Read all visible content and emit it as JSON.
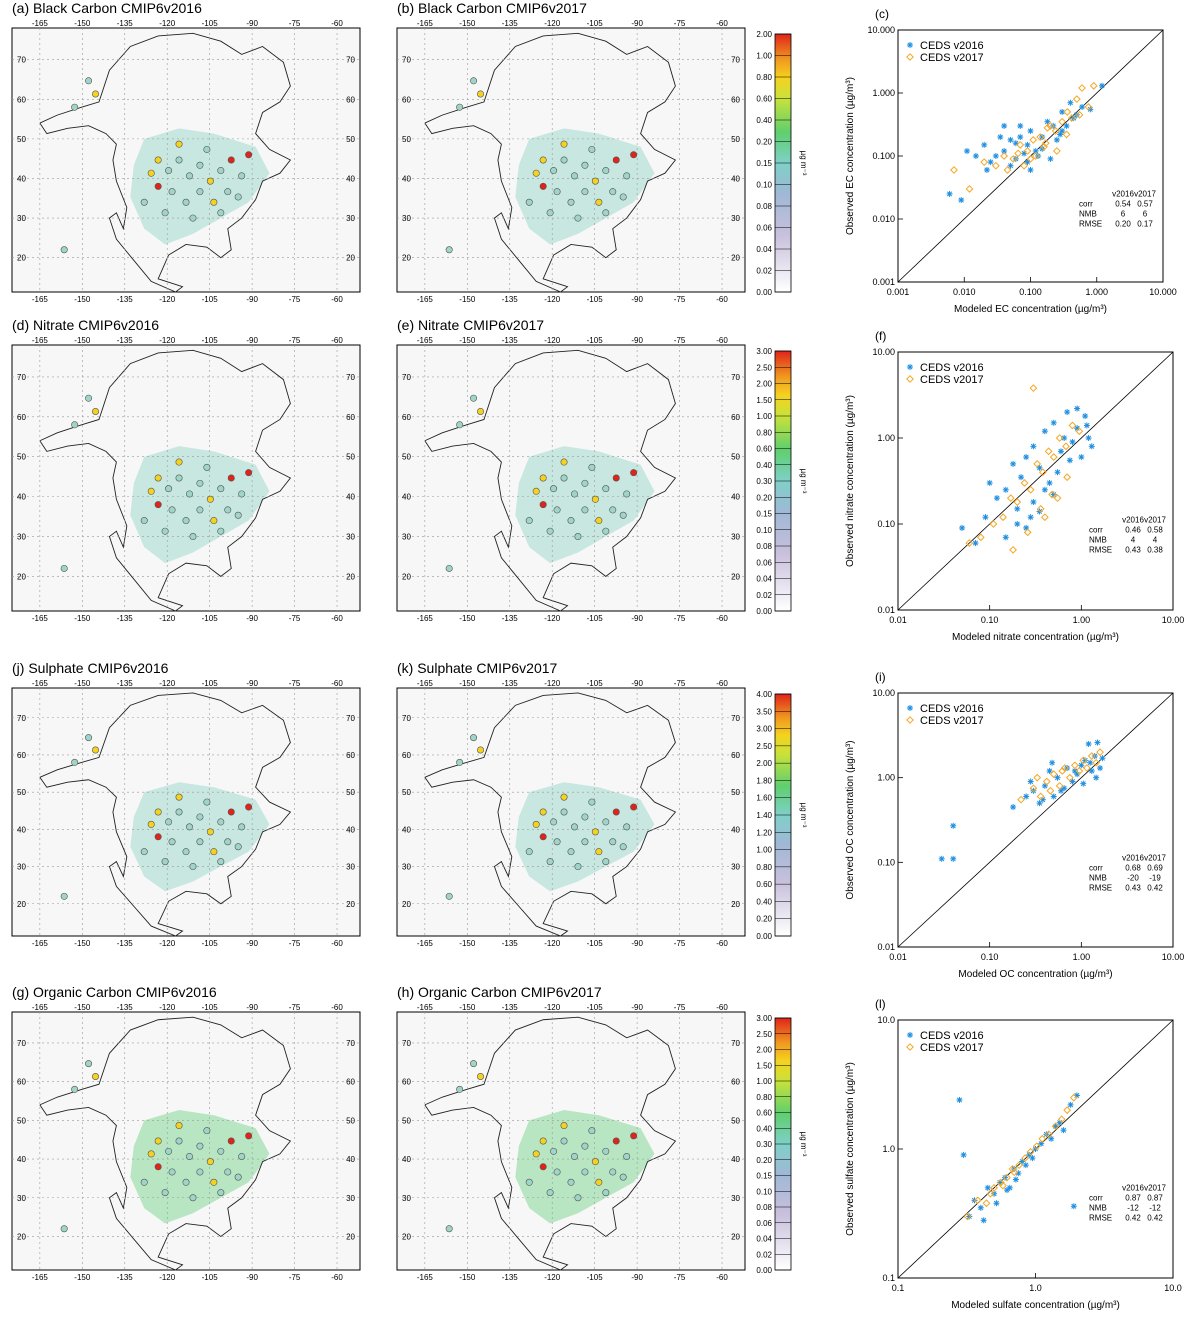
{
  "figure": {
    "map_axis": {
      "lon_ticks": [
        "-165",
        "-150",
        "-135",
        "-120",
        "-105",
        "-90",
        "-75",
        "-60"
      ],
      "lat_ticks": [
        "70",
        "60",
        "50",
        "40",
        "30",
        "20"
      ]
    },
    "colorbar_unit": "µg m⁻³",
    "colors": {
      "accent_v2016": "#1f8fe0",
      "accent_v2017": "#f5a623"
    },
    "rows": [
      {
        "species": "Black Carbon",
        "map_left_title": "(a)  Black Carbon CMIP6v2016",
        "map_right_title": "(b)  Black Carbon CMIP6v2017",
        "colorbar_ticks": [
          "2.00",
          "1.00",
          "0.80",
          "0.60",
          "0.40",
          "0.20",
          "0.15",
          "0.10",
          "0.08",
          "0.06",
          "0.04",
          "0.02",
          "0.00"
        ]
      },
      {
        "species": "Nitrate",
        "map_left_title": "(d)  Nitrate CMIP6v2016",
        "map_right_title": "(e)  Nitrate CMIP6v2017",
        "colorbar_ticks": [
          "3.00",
          "2.50",
          "2.00",
          "1.50",
          "1.00",
          "0.80",
          "0.60",
          "0.40",
          "0.30",
          "0.20",
          "0.15",
          "0.10",
          "0.08",
          "0.06",
          "0.04",
          "0.02",
          "0.00"
        ]
      },
      {
        "species": "Sulphate",
        "map_left_title": "(j)  Sulphate CMIP6v2016",
        "map_right_title": "(k)  Sulphate CMIP6v2017",
        "colorbar_ticks": [
          "4.00",
          "3.50",
          "3.00",
          "2.50",
          "2.00",
          "1.80",
          "1.60",
          "1.40",
          "1.20",
          "1.00",
          "0.80",
          "0.60",
          "0.40",
          "0.20",
          "0.00"
        ]
      },
      {
        "species": "Organic Carbon",
        "map_left_title": "(g)  Organic Carbon CMIP6v2016",
        "map_right_title": "(h)  Organic Carbon CMIP6v2017",
        "colorbar_ticks": [
          "3.00",
          "2.50",
          "2.00",
          "1.50",
          "1.00",
          "0.80",
          "0.60",
          "0.40",
          "0.30",
          "0.20",
          "0.15",
          "0.10",
          "0.08",
          "0.06",
          "0.04",
          "0.02",
          "0.00"
        ]
      }
    ]
  },
  "chart_data": [
    {
      "type": "scatter",
      "panel": "(c)",
      "xlabel": "Modeled EC concentration (µg/m³)",
      "ylabel": "Observed EC concentration (µg/m³)",
      "x_scale": "log",
      "y_scale": "log",
      "xlim": [
        0.001,
        10
      ],
      "ylim": [
        0.001,
        10
      ],
      "ticks": [
        "0.001",
        "0.010",
        "0.100",
        "1.000",
        "10.000"
      ],
      "legend_placement": "top-left",
      "series": [
        {
          "name": "CEDS v2016",
          "marker": "asterisk",
          "color": "#1f8fe0",
          "x": [
            0.006,
            0.009,
            0.011,
            0.015,
            0.02,
            0.022,
            0.025,
            0.03,
            0.035,
            0.04,
            0.05,
            0.06,
            0.07,
            0.08,
            0.09,
            0.1,
            0.12,
            0.15,
            0.18,
            0.22,
            0.25,
            0.3,
            0.35,
            0.4,
            0.5,
            0.6,
            0.8,
            1.2,
            0.05,
            0.07,
            0.1,
            0.13,
            0.2,
            0.3,
            0.45,
            0.04,
            0.06,
            0.09,
            0.15,
            0.28
          ],
          "y": [
            0.025,
            0.02,
            0.12,
            0.1,
            0.15,
            0.06,
            0.08,
            0.1,
            0.2,
            0.12,
            0.18,
            0.09,
            0.3,
            0.11,
            0.15,
            0.25,
            0.12,
            0.2,
            0.35,
            0.3,
            0.18,
            0.5,
            0.3,
            0.7,
            0.45,
            0.6,
            0.55,
            1.3,
            0.07,
            0.2,
            0.06,
            0.1,
            0.09,
            0.25,
            0.4,
            0.3,
            0.16,
            0.08,
            0.13,
            0.22
          ]
        },
        {
          "name": "CEDS v2017",
          "marker": "diamond",
          "color": "#f5a623",
          "x": [
            0.007,
            0.012,
            0.02,
            0.03,
            0.04,
            0.055,
            0.07,
            0.09,
            0.11,
            0.14,
            0.17,
            0.2,
            0.24,
            0.3,
            0.36,
            0.42,
            0.5,
            0.6,
            0.75,
            0.9,
            0.08,
            0.12,
            0.16,
            0.25,
            0.35,
            0.55,
            0.045,
            0.065,
            0.1,
            0.18
          ],
          "y": [
            0.06,
            0.03,
            0.08,
            0.07,
            0.1,
            0.09,
            0.15,
            0.12,
            0.18,
            0.2,
            0.16,
            0.3,
            0.25,
            0.35,
            0.5,
            0.4,
            0.8,
            1.2,
            0.6,
            1.3,
            0.07,
            0.1,
            0.14,
            0.12,
            0.22,
            0.45,
            0.06,
            0.11,
            0.09,
            0.28
          ]
        }
      ],
      "stats": {
        "header": [
          "",
          "v2016",
          "v2017"
        ],
        "rows": [
          [
            "corr",
            "0.54",
            "0.57"
          ],
          [
            "NMB",
            "6",
            "6"
          ],
          [
            "RMSE",
            "0.20",
            "0.17"
          ]
        ]
      }
    },
    {
      "type": "scatter",
      "panel": "(f)",
      "xlabel": "Modeled nitrate concentration (µg/m³)",
      "ylabel": "Observed nitrate concentration (µg/m³)",
      "x_scale": "log",
      "y_scale": "log",
      "xlim": [
        0.01,
        10
      ],
      "ylim": [
        0.01,
        10
      ],
      "ticks": [
        "0.01",
        "0.10",
        "1.00",
        "10.00"
      ],
      "legend_placement": "top-left",
      "series": [
        {
          "name": "CEDS v2016",
          "marker": "asterisk",
          "color": "#1f8fe0",
          "x": [
            0.05,
            0.07,
            0.09,
            0.1,
            0.12,
            0.15,
            0.18,
            0.2,
            0.22,
            0.25,
            0.28,
            0.3,
            0.35,
            0.4,
            0.45,
            0.5,
            0.6,
            0.7,
            0.8,
            0.9,
            1.0,
            1.1,
            1.2,
            1.3,
            0.15,
            0.2,
            0.3,
            0.4,
            0.55,
            0.75,
            0.25,
            0.35,
            0.5,
            0.65,
            0.9,
            1.15
          ],
          "y": [
            0.09,
            0.06,
            0.12,
            0.3,
            0.2,
            0.25,
            0.5,
            0.15,
            0.35,
            0.6,
            0.12,
            0.8,
            0.45,
            1.2,
            0.3,
            1.5,
            0.7,
            2.0,
            0.9,
            1.3,
            0.6,
            1.8,
            1.0,
            0.8,
            0.07,
            0.1,
            0.18,
            0.25,
            0.4,
            0.55,
            0.09,
            0.14,
            0.22,
            1.0,
            2.2,
            1.4
          ]
        },
        {
          "name": "CEDS v2017",
          "marker": "diamond",
          "color": "#f5a623",
          "x": [
            0.06,
            0.08,
            0.11,
            0.14,
            0.17,
            0.2,
            0.24,
            0.28,
            0.33,
            0.38,
            0.44,
            0.5,
            0.58,
            0.68,
            0.8,
            0.95,
            0.3,
            0.4,
            0.55,
            0.7,
            0.18,
            0.26,
            0.36,
            0.48
          ],
          "y": [
            0.06,
            0.07,
            0.1,
            0.12,
            0.2,
            0.18,
            0.3,
            0.25,
            0.5,
            0.4,
            0.7,
            0.6,
            1.0,
            0.8,
            1.4,
            1.2,
            3.8,
            0.12,
            0.2,
            0.35,
            0.05,
            0.08,
            0.15,
            0.22
          ]
        }
      ],
      "stats": {
        "header": [
          "",
          "v2016",
          "v2017"
        ],
        "rows": [
          [
            "corr",
            "0.46",
            "0.58"
          ],
          [
            "NMB",
            "4",
            "4"
          ],
          [
            "RMSE",
            "0.43",
            "0.38"
          ]
        ]
      }
    },
    {
      "type": "scatter",
      "panel": "(i)",
      "xlabel": "Modeled OC concentration (µg/m³)",
      "ylabel": "Observed OC concentration (µg/m³)",
      "x_scale": "log",
      "y_scale": "log",
      "xlim": [
        0.01,
        10
      ],
      "ylim": [
        0.01,
        10
      ],
      "ticks": [
        "0.01",
        "0.10",
        "1.00",
        "10.00"
      ],
      "legend_placement": "top-left",
      "series": [
        {
          "name": "CEDS v2016",
          "marker": "asterisk",
          "color": "#1f8fe0",
          "x": [
            0.03,
            0.04,
            0.04,
            0.18,
            0.25,
            0.3,
            0.35,
            0.4,
            0.45,
            0.5,
            0.55,
            0.6,
            0.7,
            0.8,
            0.9,
            1.0,
            1.1,
            1.2,
            1.3,
            1.4,
            1.5,
            1.6,
            1.7,
            0.28,
            0.38,
            0.48,
            0.65,
            0.85,
            1.05,
            1.25,
            1.45
          ],
          "y": [
            0.11,
            0.27,
            0.11,
            0.45,
            0.6,
            0.7,
            0.5,
            0.8,
            1.2,
            0.6,
            1.0,
            0.7,
            1.3,
            0.9,
            1.1,
            1.4,
            1.6,
            2.5,
            1.2,
            1.8,
            2.6,
            1.3,
            1.7,
            0.9,
            0.55,
            1.5,
            0.75,
            1.2,
            0.85,
            1.5,
            1.0
          ]
        },
        {
          "name": "CEDS v2017",
          "marker": "diamond",
          "color": "#f5a623",
          "x": [
            0.22,
            0.3,
            0.36,
            0.42,
            0.5,
            0.58,
            0.66,
            0.75,
            0.85,
            0.95,
            1.05,
            1.15,
            1.3,
            1.45,
            1.6,
            0.33,
            0.46,
            0.62
          ],
          "y": [
            0.55,
            0.75,
            0.6,
            0.9,
            1.1,
            0.8,
            1.3,
            1.0,
            1.4,
            1.2,
            1.6,
            1.3,
            1.8,
            1.5,
            2.0,
            1.0,
            0.7,
            1.2
          ]
        }
      ],
      "stats": {
        "header": [
          "",
          "v2016",
          "v2017"
        ],
        "rows": [
          [
            "corr",
            "0.68",
            "0.69"
          ],
          [
            "NMB",
            "-20",
            "-19"
          ],
          [
            "RMSE",
            "0.43",
            "0.42"
          ]
        ]
      }
    },
    {
      "type": "scatter",
      "panel": "(l)",
      "xlabel": "Modeled sulfate concentration (µg/m³)",
      "ylabel": "Observed sulfate concentration (µg/m³)",
      "x_scale": "log",
      "y_scale": "log",
      "xlim": [
        0.1,
        10
      ],
      "ylim": [
        0.1,
        10
      ],
      "ticks": [
        "0.1",
        "1.0",
        "10.0"
      ],
      "legend_placement": "top-left",
      "series": [
        {
          "name": "CEDS v2016",
          "marker": "asterisk",
          "color": "#1f8fe0",
          "x": [
            0.28,
            0.3,
            0.33,
            0.36,
            0.4,
            0.45,
            0.5,
            0.55,
            0.6,
            0.65,
            0.7,
            0.75,
            0.8,
            0.9,
            1.0,
            1.1,
            1.2,
            1.3,
            1.4,
            1.5,
            1.6,
            1.8,
            2.0,
            1.9,
            0.42,
            0.52,
            0.62,
            0.72,
            0.85,
            0.95
          ],
          "y": [
            2.4,
            0.9,
            0.3,
            0.4,
            0.35,
            0.5,
            0.45,
            0.55,
            0.6,
            0.5,
            0.7,
            0.65,
            0.8,
            0.9,
            1.0,
            1.1,
            1.3,
            1.2,
            1.5,
            1.6,
            1.4,
            2.2,
            2.6,
            0.36,
            0.28,
            0.38,
            0.48,
            0.58,
            0.75,
            0.85
          ]
        },
        {
          "name": "CEDS v2017",
          "marker": "diamond",
          "color": "#f5a623",
          "x": [
            0.32,
            0.38,
            0.44,
            0.5,
            0.56,
            0.62,
            0.68,
            0.76,
            0.84,
            0.92,
            1.02,
            1.12,
            1.25,
            1.4,
            1.55,
            1.7,
            1.9,
            0.47,
            0.58,
            0.7
          ],
          "y": [
            0.3,
            0.4,
            0.38,
            0.5,
            0.55,
            0.6,
            0.7,
            0.75,
            0.85,
            0.95,
            1.05,
            1.2,
            1.3,
            1.5,
            1.7,
            2.0,
            2.5,
            0.45,
            0.52,
            0.66
          ]
        }
      ],
      "stats": {
        "header": [
          "",
          "v2016",
          "v2017"
        ],
        "rows": [
          [
            "corr",
            "0.87",
            "0.87"
          ],
          [
            "NMB",
            "-12",
            "-12"
          ],
          [
            "RMSE",
            "0.42",
            "0.42"
          ]
        ]
      }
    }
  ]
}
